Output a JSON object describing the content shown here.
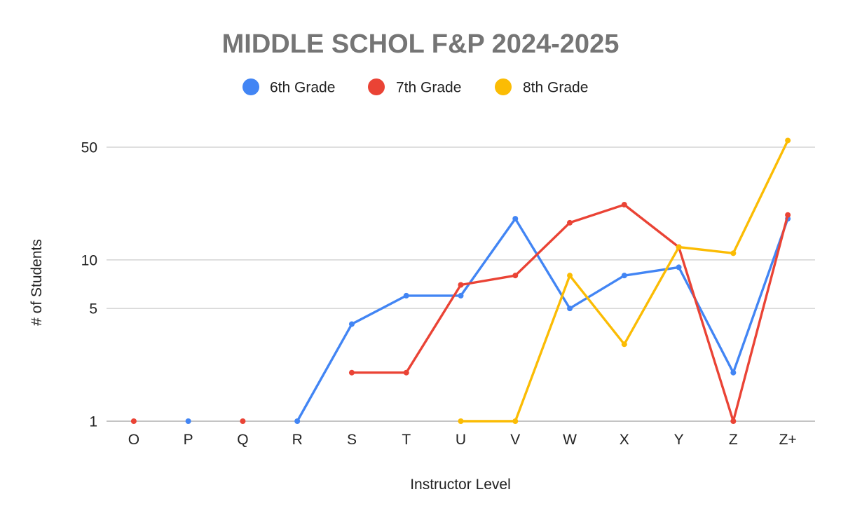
{
  "chart_data": {
    "type": "line",
    "title": "MIDDLE SCHOL F&P 2024-2025",
    "xlabel": "Instructor Level",
    "ylabel": "# of Students",
    "y_scale": "log",
    "ylim": [
      1,
      50
    ],
    "y_ticks": [
      1,
      5,
      10,
      50
    ],
    "grid": true,
    "legend_position": "top",
    "categories": [
      "O",
      "P",
      "Q",
      "R",
      "S",
      "T",
      "U",
      "V",
      "W",
      "X",
      "Y",
      "Z",
      "Z+"
    ],
    "series": [
      {
        "name": "6th Grade",
        "color": "#4285f4",
        "values": [
          null,
          1,
          null,
          1,
          4,
          6,
          6,
          18,
          5,
          8,
          9,
          2,
          18
        ]
      },
      {
        "name": "7th Grade",
        "color": "#ea4335",
        "values": [
          1,
          null,
          1,
          null,
          2,
          2,
          7,
          8,
          17,
          22,
          12,
          1,
          19
        ]
      },
      {
        "name": "8th Grade",
        "color": "#fbbc04",
        "values": [
          null,
          null,
          null,
          null,
          null,
          null,
          1,
          1,
          8,
          3,
          12,
          11,
          55
        ]
      }
    ]
  }
}
